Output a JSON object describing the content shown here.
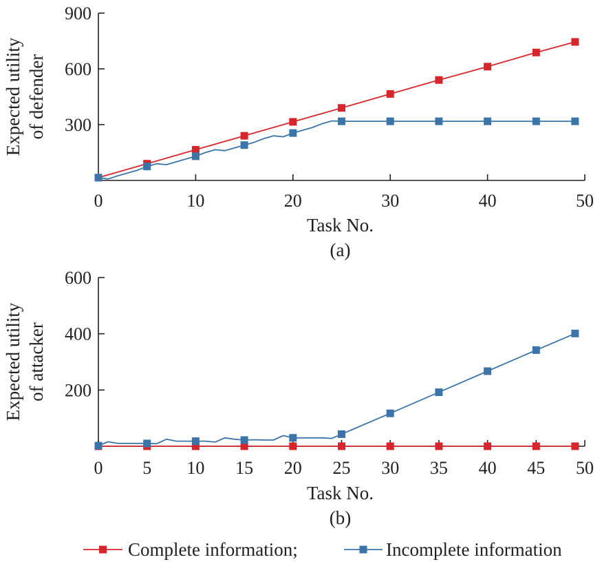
{
  "chart_data": [
    {
      "type": "line",
      "panel_label": "(a)",
      "xlabel": "Task No.",
      "ylabel": [
        "Expected utility",
        "of defender"
      ],
      "xlim": [
        0,
        50
      ],
      "ylim": [
        0,
        900
      ],
      "x_ticks": [
        0,
        10,
        20,
        30,
        40,
        50
      ],
      "y_ticks": [
        300,
        600,
        900
      ],
      "grid": false,
      "series": [
        {
          "name": "Complete information",
          "color": "#d7262b",
          "marker": "square",
          "x": [
            0,
            5,
            10,
            15,
            20,
            25,
            30,
            35,
            40,
            45,
            49
          ],
          "y": [
            15,
            90,
            165,
            240,
            315,
            390,
            465,
            540,
            612,
            688,
            745
          ],
          "marker_x": [
            0,
            5,
            10,
            15,
            20,
            25,
            30,
            35,
            40,
            45,
            49
          ]
        },
        {
          "name": "Incomplete information",
          "color": "#3a74a8",
          "marker": "square",
          "x": [
            0,
            1,
            2,
            3,
            4,
            5,
            6,
            7,
            8,
            9,
            10,
            11,
            12,
            13,
            14,
            15,
            16,
            17,
            18,
            19,
            20,
            21,
            22,
            23,
            24,
            25,
            30,
            35,
            40,
            45,
            49
          ],
          "y": [
            15,
            8,
            25,
            40,
            55,
            75,
            90,
            85,
            100,
            115,
            130,
            150,
            165,
            160,
            175,
            190,
            205,
            225,
            240,
            235,
            255,
            270,
            285,
            305,
            320,
            318,
            318,
            318,
            318,
            318,
            318
          ],
          "marker_x": [
            0,
            5,
            10,
            15,
            20,
            25,
            30,
            35,
            40,
            45,
            49
          ]
        }
      ]
    },
    {
      "type": "line",
      "panel_label": "(b)",
      "xlabel": "Task No.",
      "ylabel": [
        "Expected utility",
        "of attacker"
      ],
      "xlim": [
        0,
        50
      ],
      "ylim": [
        0,
        600
      ],
      "x_ticks": [
        0,
        5,
        10,
        15,
        20,
        25,
        30,
        35,
        40,
        45,
        50
      ],
      "y_ticks": [
        200,
        400,
        600
      ],
      "grid": false,
      "series": [
        {
          "name": "Complete information",
          "color": "#d7262b",
          "marker": "square",
          "x": [
            0,
            5,
            10,
            15,
            20,
            25,
            30,
            35,
            40,
            45,
            49
          ],
          "y": [
            0,
            0,
            0,
            0,
            0,
            0,
            0,
            0,
            0,
            0,
            0
          ],
          "marker_x": [
            0,
            5,
            10,
            15,
            20,
            25,
            30,
            35,
            40,
            45,
            49
          ]
        },
        {
          "name": "Incomplete information",
          "color": "#3a74a8",
          "marker": "square",
          "x": [
            0,
            1,
            2,
            3,
            4,
            5,
            6,
            7,
            8,
            9,
            10,
            11,
            12,
            13,
            14,
            15,
            16,
            17,
            18,
            19,
            20,
            21,
            22,
            23,
            24,
            25,
            30,
            35,
            40,
            45,
            49
          ],
          "y": [
            2,
            16,
            10,
            10,
            10,
            10,
            9,
            25,
            18,
            18,
            18,
            18,
            15,
            30,
            25,
            22,
            23,
            22,
            22,
            38,
            30,
            30,
            30,
            30,
            28,
            43,
            117,
            192,
            267,
            342,
            401
          ],
          "marker_x": [
            0,
            5,
            10,
            15,
            20,
            25,
            30,
            35,
            40,
            45,
            49
          ]
        }
      ]
    }
  ],
  "legend": {
    "items": [
      "Complete information;",
      "Incomplete information"
    ],
    "colors": [
      "#d7262b",
      "#3a74a8"
    ],
    "placement": "bottom"
  }
}
